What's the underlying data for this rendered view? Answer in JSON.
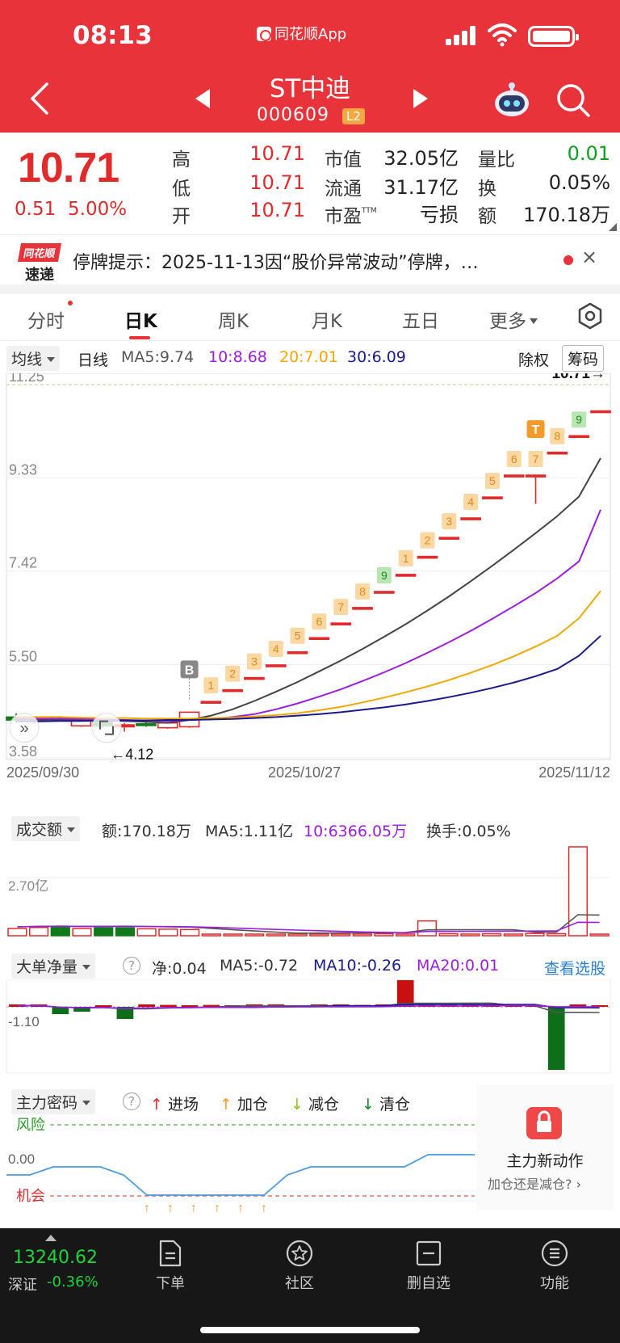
{
  "status_bar": {
    "time": "08:13",
    "app_label": "同花顺App"
  },
  "header": {
    "stock_name": "ST中迪",
    "stock_code": "000609",
    "badge": "L2"
  },
  "quote": {
    "price": "10.71",
    "change": "0.51",
    "change_pct": "5.00%",
    "rows": [
      {
        "l1": "高",
        "v1": "10.71",
        "l2": "市值",
        "v2": "32.05亿",
        "l3": "量比",
        "v3": "0.01"
      },
      {
        "l1": "低",
        "v1": "10.71",
        "l2": "流通",
        "v2": "31.17亿",
        "l3": "换",
        "v3": "0.05%"
      },
      {
        "l1": "开",
        "v1": "10.71",
        "l2": "市盈",
        "l2_sup": "TTM",
        "v2": "亏损",
        "l3": "额",
        "v3": "170.18万"
      }
    ]
  },
  "notice": {
    "logo_top": "同花顺",
    "logo_bottom": "速递",
    "text": "停牌提示：2025-11-13因“股价异常波动”停牌，…",
    "close": "×"
  },
  "tabs": [
    "分时",
    "日K",
    "周K",
    "月K",
    "五日",
    "更多"
  ],
  "active_tab": "日K",
  "ma_legend": {
    "dropdown": "均线",
    "period": "日线",
    "ma5": "MA5:9.74",
    "ma10": "10:8.68",
    "ma20": "20:7.01",
    "ma30": "30:6.09",
    "fq": "除权",
    "chip": "筹码"
  },
  "colors": {
    "up": "#e12a2a",
    "down": "#107a1a",
    "ma5": "#444444",
    "ma10": "#9b1ee0",
    "ma20": "#f0a800",
    "ma30": "#1a1a8f"
  },
  "kline": {
    "y_ticks": [
      "11.25",
      "9.33",
      "7.42",
      "5.50",
      "3.58"
    ],
    "x_labels": [
      "2025/09/30",
      "2025/10/27",
      "2025/11/12"
    ],
    "latest_label": "10.71→",
    "low_label": "←4.12",
    "signal_b": "B",
    "signal_t": "T",
    "seq_labels": [
      "1",
      "2",
      "3",
      "4",
      "5",
      "6",
      "7",
      "8",
      "9",
      "1",
      "2",
      "3",
      "4",
      "5",
      "6",
      "7",
      "8",
      "9"
    ],
    "chart_data": {
      "type": "candlestick",
      "x_range": [
        "2025/09/30",
        "2025/11/12"
      ],
      "ylim": [
        3.58,
        11.25
      ],
      "candles": [
        {
          "o": 4.42,
          "c": 4.36,
          "h": 4.5,
          "l": 4.3
        },
        {
          "o": 4.36,
          "c": 4.38,
          "h": 4.42,
          "l": 4.32
        },
        {
          "o": 4.4,
          "c": 4.37,
          "h": 4.44,
          "l": 4.34
        },
        {
          "o": 4.24,
          "c": 4.38,
          "h": 4.4,
          "l": 4.22
        },
        {
          "o": 4.36,
          "c": 4.24,
          "h": 4.38,
          "l": 4.2
        },
        {
          "o": 4.22,
          "c": 4.26,
          "h": 4.3,
          "l": 4.12
        },
        {
          "o": 4.28,
          "c": 4.26,
          "h": 4.32,
          "l": 4.22
        },
        {
          "o": 4.2,
          "c": 4.3,
          "h": 4.32,
          "l": 4.18
        },
        {
          "o": 4.22,
          "c": 4.52,
          "h": 4.52,
          "l": 4.2
        },
        {
          "o": 4.74,
          "c": 4.74,
          "h": 4.74,
          "l": 4.74
        },
        {
          "o": 4.98,
          "c": 4.98,
          "h": 4.98,
          "l": 4.98
        },
        {
          "o": 5.23,
          "c": 5.23,
          "h": 5.23,
          "l": 5.23
        },
        {
          "o": 5.49,
          "c": 5.49,
          "h": 5.49,
          "l": 5.49
        },
        {
          "o": 5.76,
          "c": 5.76,
          "h": 5.76,
          "l": 5.76
        },
        {
          "o": 6.05,
          "c": 6.05,
          "h": 6.05,
          "l": 6.05
        },
        {
          "o": 6.35,
          "c": 6.35,
          "h": 6.35,
          "l": 6.35
        },
        {
          "o": 6.67,
          "c": 6.67,
          "h": 6.67,
          "l": 6.67
        },
        {
          "o": 7.0,
          "c": 7.0,
          "h": 7.0,
          "l": 7.0
        },
        {
          "o": 7.35,
          "c": 7.35,
          "h": 7.35,
          "l": 7.35
        },
        {
          "o": 7.72,
          "c": 7.72,
          "h": 7.72,
          "l": 7.72
        },
        {
          "o": 8.11,
          "c": 8.11,
          "h": 8.11,
          "l": 8.11
        },
        {
          "o": 8.51,
          "c": 8.51,
          "h": 8.51,
          "l": 8.51
        },
        {
          "o": 8.94,
          "c": 8.94,
          "h": 8.94,
          "l": 8.94
        },
        {
          "o": 9.39,
          "c": 9.39,
          "h": 9.39,
          "l": 9.39
        },
        {
          "o": 9.39,
          "c": 9.39,
          "h": 9.39,
          "l": 8.8
        },
        {
          "o": 9.86,
          "c": 9.86,
          "h": 9.86,
          "l": 9.86
        },
        {
          "o": 10.2,
          "c": 10.2,
          "h": 10.2,
          "l": 10.2
        },
        {
          "o": 10.71,
          "c": 10.71,
          "h": 10.71,
          "l": 10.71
        }
      ],
      "ma5": [
        4.38,
        4.37,
        4.37,
        4.36,
        4.35,
        4.34,
        4.32,
        4.3,
        4.36,
        4.45,
        4.58,
        4.75,
        4.94,
        5.14,
        5.36,
        5.58,
        5.82,
        6.07,
        6.33,
        6.61,
        6.9,
        7.21,
        7.53,
        7.86,
        8.2,
        8.55,
        8.95,
        9.74
      ],
      "ma10": [
        4.4,
        4.39,
        4.39,
        4.38,
        4.37,
        4.36,
        4.35,
        4.34,
        4.36,
        4.38,
        4.42,
        4.48,
        4.58,
        4.7,
        4.84,
        4.99,
        5.16,
        5.34,
        5.53,
        5.74,
        5.96,
        6.19,
        6.44,
        6.7,
        6.97,
        7.27,
        7.62,
        8.68
      ],
      "ma20": [
        4.43,
        4.42,
        4.42,
        4.41,
        4.4,
        4.4,
        4.39,
        4.39,
        4.39,
        4.4,
        4.41,
        4.43,
        4.46,
        4.5,
        4.56,
        4.63,
        4.72,
        4.82,
        4.93,
        5.05,
        5.18,
        5.33,
        5.49,
        5.67,
        5.87,
        6.09,
        6.45,
        7.01
      ],
      "ma30": [
        4.33,
        4.33,
        4.34,
        4.34,
        4.35,
        4.35,
        4.35,
        4.36,
        4.36,
        4.37,
        4.38,
        4.4,
        4.42,
        4.45,
        4.48,
        4.52,
        4.57,
        4.62,
        4.68,
        4.75,
        4.83,
        4.92,
        5.02,
        5.13,
        5.26,
        5.41,
        5.68,
        6.09
      ]
    }
  },
  "amount_panel": {
    "dropdown": "成交额",
    "amount": "额:170.18万",
    "ma5": "MA5:1.11亿",
    "ma10": "10:6366.05万",
    "turnover": "换手:0.05%",
    "y_label": "2.70亿",
    "chart_data": {
      "type": "bar",
      "unit": "亿",
      "values": [
        0.22,
        0.25,
        0.25,
        0.22,
        0.24,
        0.24,
        0.21,
        0.2,
        0.19,
        0.03,
        0.03,
        0.03,
        0.03,
        0.03,
        0.04,
        0.04,
        0.05,
        0.06,
        0.05,
        0.45,
        0.06,
        0.05,
        0.06,
        0.05,
        0.07,
        0.06,
        2.7,
        0.02
      ],
      "down_days": [
        2,
        4,
        5
      ]
    }
  },
  "bigorder_panel": {
    "dropdown": "大单净量",
    "net": "净:0.04",
    "ma5": "MA5:-0.72",
    "ma10": "MA10:-0.26",
    "ma20": "MA20:0.01",
    "link": "查看选股",
    "y_label": "-1.10",
    "chart_data": {
      "type": "bar",
      "values": [
        0.1,
        0.1,
        -0.3,
        -0.2,
        0.05,
        -0.5,
        0.1,
        0.08,
        0.06,
        0.08,
        0.06,
        0.1,
        0.1,
        0.06,
        0.1,
        0.1,
        0.08,
        0.1,
        1.1,
        0.12,
        0.1,
        0.1,
        0.1,
        0.08,
        0.06,
        -2.6,
        0.1,
        0.04
      ]
    }
  },
  "force_panel": {
    "dropdown": "主力密码",
    "legend": [
      {
        "label": "进场",
        "arrow": "↑",
        "color": "#e12a2a"
      },
      {
        "label": "加仓",
        "arrow": "↑",
        "color": "#f39a2a"
      },
      {
        "label": "减仓",
        "arrow": "↓",
        "color": "#8fc21f"
      },
      {
        "label": "清仓",
        "arrow": "↓",
        "color": "#1a8a2a"
      }
    ],
    "risk_label": "风险",
    "zero_label": "0.00",
    "chance_label": "机会",
    "chart_data": {
      "type": "line",
      "values": [
        -0.2,
        -0.2,
        -0.1,
        -0.1,
        -0.1,
        -0.2,
        -0.45,
        -0.45,
        -0.45,
        -0.45,
        -0.45,
        -0.45,
        -0.2,
        -0.1,
        -0.1,
        -0.1,
        -0.1,
        -0.1,
        0.05,
        0.05,
        0.05
      ]
    },
    "promo_title": "主力新动作",
    "promo_sub": "加仓还是减仓?"
  },
  "bottom": {
    "index_value": "13240.62",
    "index_name": "深证",
    "index_pct": "-0.36%",
    "nav": [
      "下单",
      "社区",
      "删自选",
      "功能"
    ]
  }
}
